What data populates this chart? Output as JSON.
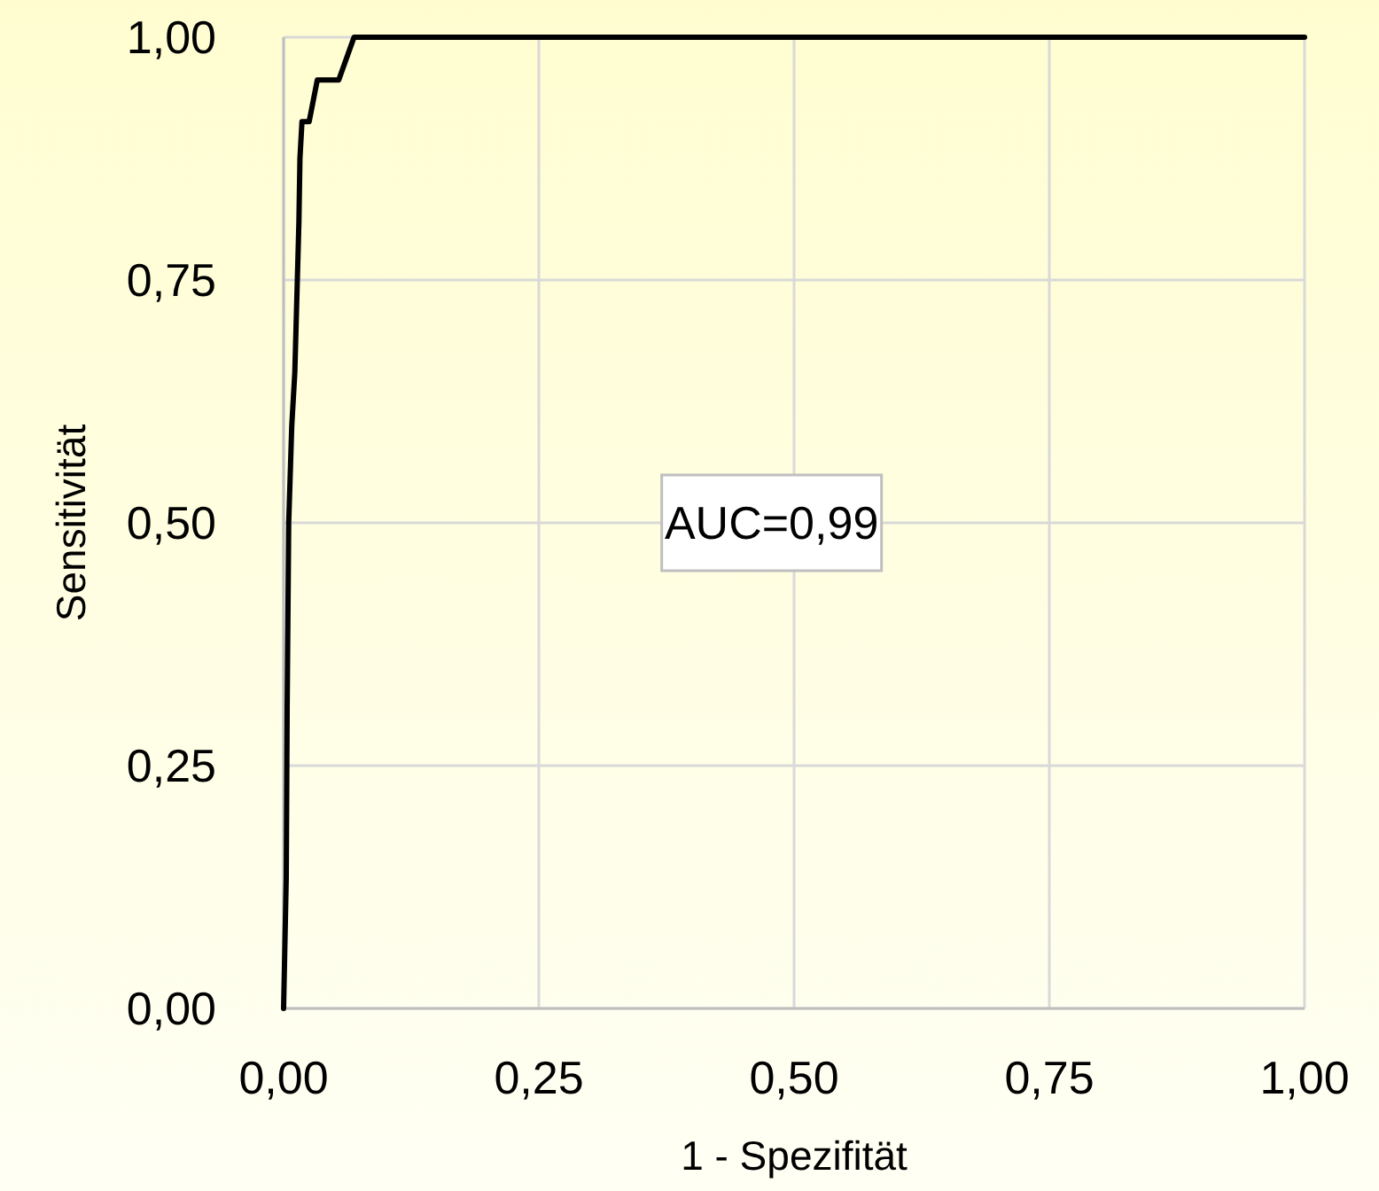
{
  "chart_data": {
    "type": "line",
    "xlabel": "1 - Spezifität",
    "ylabel": "Sensitivität",
    "annotations": [
      "AUC=0,99"
    ],
    "series": [
      {
        "color": "#000000",
        "x": [
          0,
          0.0026,
          0.0035,
          0.005,
          0.008,
          0.011,
          0.015,
          0.016,
          0.018,
          0.025,
          0.033,
          0.054,
          0.069,
          1
        ],
        "values": [
          0,
          0.135,
          0.31,
          0.5,
          0.6,
          0.655,
          0.81,
          0.875,
          0.913,
          0.913,
          0.956,
          0.956,
          1,
          1
        ]
      }
    ],
    "xlim": [
      0,
      1
    ],
    "ylim": [
      0,
      1
    ],
    "xticks": [
      {
        "value": 0,
        "label": "0,00"
      },
      {
        "value": 0.25,
        "label": "0,25"
      },
      {
        "value": 0.5,
        "label": "0,50"
      },
      {
        "value": 0.75,
        "label": "0,75"
      },
      {
        "value": 1,
        "label": "1,00"
      }
    ],
    "yticks": [
      {
        "value": 0,
        "label": "0,00"
      },
      {
        "value": 0.25,
        "label": "0,25"
      },
      {
        "value": 0.5,
        "label": "0,50"
      },
      {
        "value": 0.75,
        "label": "0,75"
      },
      {
        "value": 1,
        "label": "1,00"
      }
    ],
    "grid": true,
    "marker": "none",
    "line_style": "solid"
  }
}
